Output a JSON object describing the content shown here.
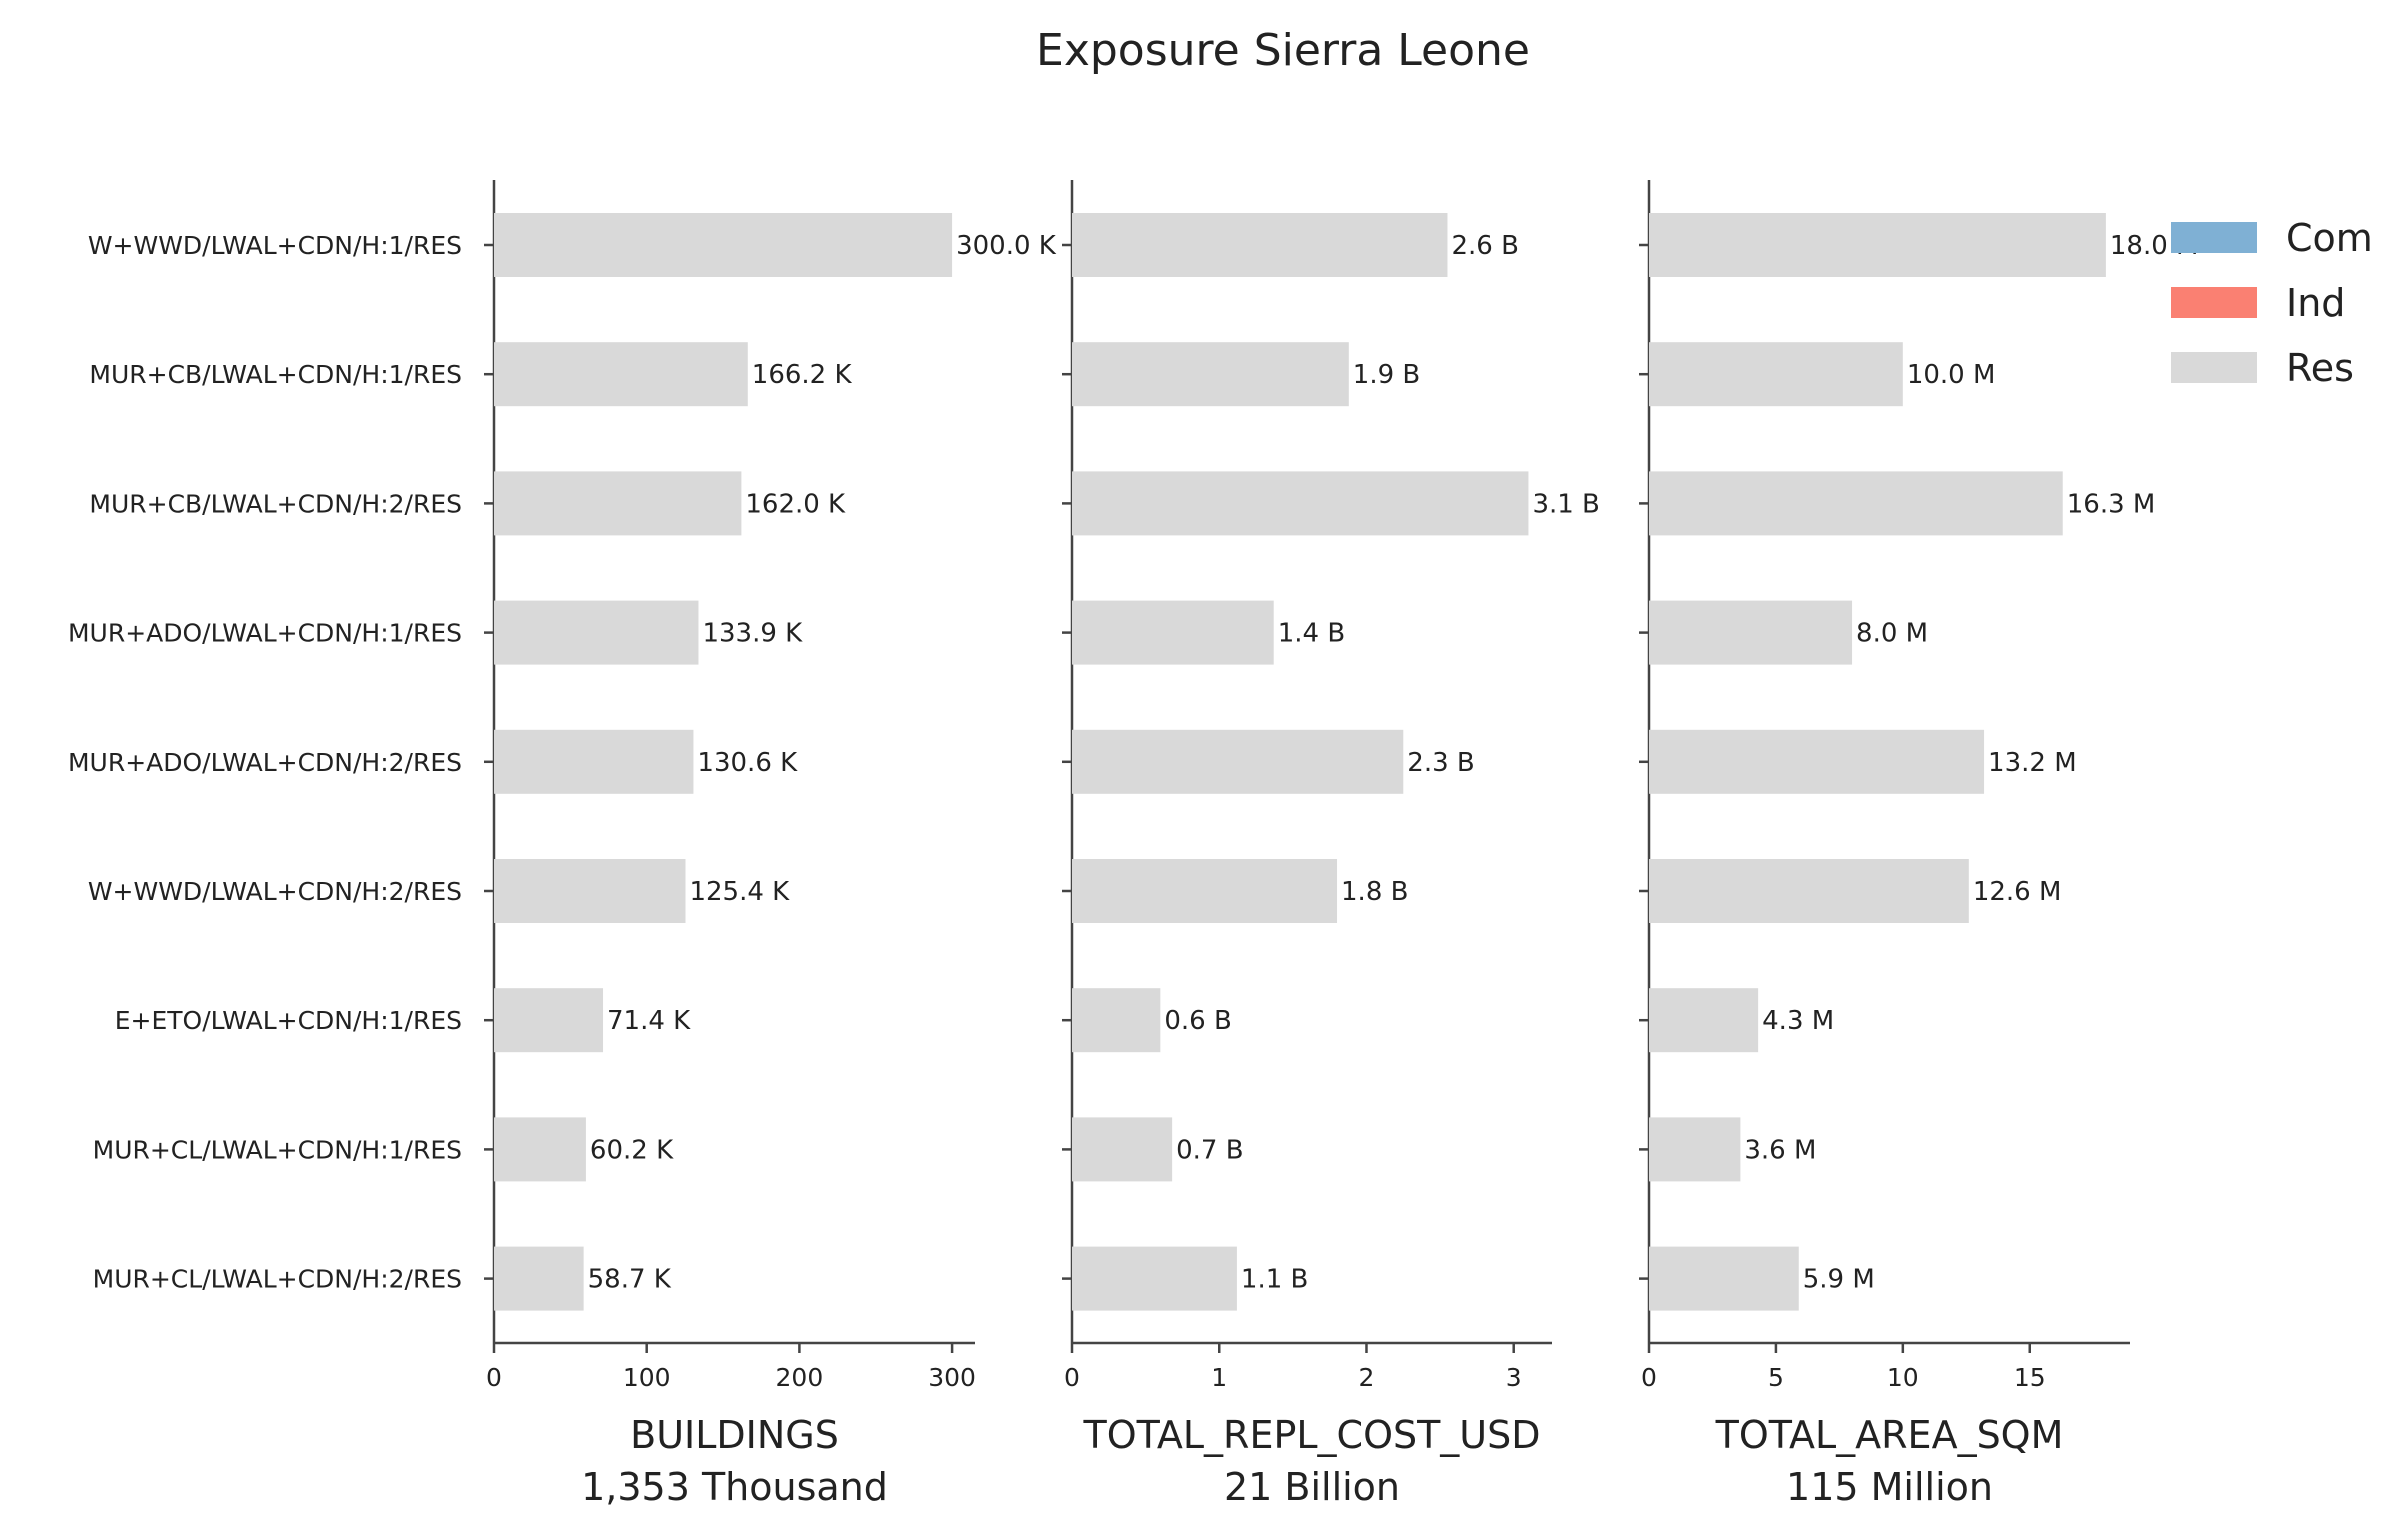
{
  "chart_data": {
    "type": "bar",
    "orientation": "horizontal",
    "stacked": true,
    "title": "Exposure Sierra Leone",
    "categories": [
      "W+WWD/LWAL+CDN/H:1/RES",
      "MUR+CB/LWAL+CDN/H:1/RES",
      "MUR+CB/LWAL+CDN/H:2/RES",
      "MUR+ADO/LWAL+CDN/H:1/RES",
      "MUR+ADO/LWAL+CDN/H:2/RES",
      "W+WWD/LWAL+CDN/H:2/RES",
      "E+ETO/LWAL+CDN/H:1/RES",
      "MUR+CL/LWAL+CDN/H:1/RES",
      "MUR+CL/LWAL+CDN/H:2/RES"
    ],
    "legend": {
      "placement": "top-right",
      "entries": [
        {
          "name": "Com",
          "color": "#7fb0d4"
        },
        {
          "name": "Ind",
          "color": "#fa8072"
        },
        {
          "name": "Res",
          "color": "#d9d9d9"
        }
      ]
    },
    "panels": [
      {
        "xlabel": "BUILDINGS",
        "xlabel_total": "1,353 Thousand",
        "xlim": [
          0,
          315
        ],
        "xticks": [
          0,
          100,
          200,
          300
        ],
        "series": [
          {
            "name": "Res",
            "values": [
              300.0,
              166.2,
              162.0,
              133.9,
              130.6,
              125.4,
              71.4,
              60.2,
              58.7
            ]
          }
        ],
        "data_labels": [
          "300.0 K",
          "166.2 K",
          "162.0 K",
          "133.9 K",
          "130.6 K",
          "125.4 K",
          "71.4 K",
          "60.2 K",
          "58.7 K"
        ]
      },
      {
        "xlabel": "TOTAL_REPL_COST_USD",
        "xlabel_total": "21 Billion",
        "xlim": [
          0,
          3.26
        ],
        "xticks": [
          0,
          1,
          2,
          3
        ],
        "series": [
          {
            "name": "Res",
            "values": [
              2.55,
              1.88,
              3.1,
              1.37,
              2.25,
              1.8,
              0.6,
              0.68,
              1.12
            ]
          }
        ],
        "data_labels": [
          "2.6 B",
          "1.9 B",
          "3.1 B",
          "1.4 B",
          "2.3 B",
          "1.8 B",
          "0.6 B",
          "0.7 B",
          "1.1 B"
        ]
      },
      {
        "xlabel": "TOTAL_AREA_SQM",
        "xlabel_total": "115 Million",
        "xlim": [
          0,
          18.95
        ],
        "xticks": [
          0,
          5,
          10,
          15
        ],
        "series": [
          {
            "name": "Res",
            "values": [
              18.0,
              10.0,
              16.3,
              8.0,
              13.2,
              12.6,
              4.3,
              3.6,
              5.9
            ]
          }
        ],
        "data_labels": [
          "18.0 M",
          "10.0 M",
          "16.3 M",
          "8.0 M",
          "13.2 M",
          "12.6 M",
          "4.3 M",
          "3.6 M",
          "5.9 M"
        ]
      }
    ],
    "grid": false
  }
}
